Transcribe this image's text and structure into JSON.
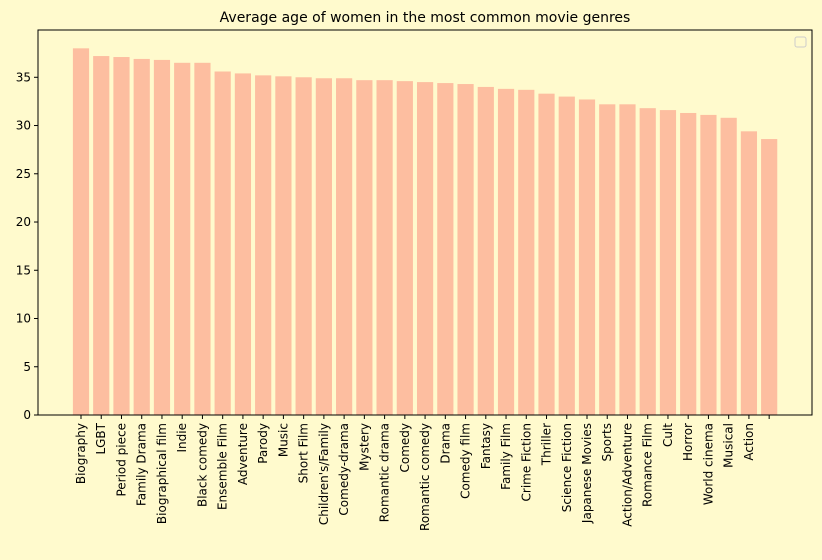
{
  "chart_data": {
    "type": "bar",
    "title": "Average age of women in the most common movie genres",
    "categories": [
      "Biography",
      "LGBT",
      "Period piece",
      "Family Drama",
      "Biographical film",
      "Indie",
      "Black comedy",
      "Ensemble Film",
      "Adventure",
      "Parody",
      "Music",
      "Short Film",
      "Children's/Family",
      "Comedy-drama",
      "Mystery",
      "Romantic drama",
      "Comedy",
      "Romantic comedy",
      "Drama",
      "Comedy film",
      "Fantasy",
      "Family Film",
      "Crime Fiction",
      "Thriller",
      "Science Fiction",
      "Japanese Movies",
      "Sports",
      "Action/Adventure",
      "Romance Film",
      "Cult",
      "Horror",
      "World cinema",
      "Musical",
      "Action",
      null
    ],
    "values": [
      38.0,
      37.2,
      37.1,
      36.9,
      36.8,
      36.5,
      36.5,
      35.6,
      35.4,
      35.2,
      35.1,
      35.0,
      34.9,
      34.9,
      34.7,
      34.7,
      34.6,
      34.5,
      34.4,
      34.3,
      34.0,
      33.8,
      33.7,
      33.3,
      33.0,
      32.7,
      32.2,
      32.2,
      31.8,
      31.6,
      31.3,
      31.1,
      30.8,
      29.4,
      28.6
    ],
    "color": "#fdbea0",
    "ylim": [
      0,
      39.9
    ],
    "yticks": [
      0,
      5,
      10,
      15,
      20,
      25,
      30,
      35
    ],
    "legend": "upper right"
  }
}
